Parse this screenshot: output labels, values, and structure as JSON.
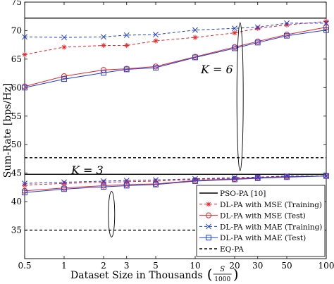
{
  "chart_data": {
    "type": "line",
    "xscale": "log",
    "xlabel": "Dataset Size in Thousands",
    "xlabel_fraction": {
      "num": "S",
      "den": "1000"
    },
    "ylabel": "Sum-Rate [bps/Hz]",
    "xlim": [
      0.5,
      100
    ],
    "ylim": [
      30,
      75
    ],
    "xticks": [
      0.5,
      1,
      2,
      3,
      5,
      10,
      20,
      30,
      50,
      100
    ],
    "xtick_labels": [
      "0.5",
      "1",
      "2",
      "3",
      "5",
      "10",
      "20",
      "30",
      "50",
      "100"
    ],
    "yticks": [
      35,
      40,
      45,
      50,
      55,
      60,
      65,
      70,
      75
    ],
    "ytick_labels": [
      "35",
      "40",
      "45",
      "50",
      "55",
      "60",
      "65",
      "70",
      "75"
    ],
    "grid": false,
    "legend_position": "bottom-right",
    "x": [
      0.5,
      1,
      2,
      3,
      5,
      10,
      20,
      30,
      50,
      100
    ],
    "series": [
      {
        "name": "PSO-PA [10]",
        "style": "solid",
        "color": "#000000",
        "marker": "none",
        "values": [
          72.2,
          72.2,
          72.2,
          72.2,
          72.2,
          72.2,
          72.2,
          72.2,
          72.2,
          72.2
        ]
      },
      {
        "name": "DL-PA with MSE  (Training)",
        "style": "dashed",
        "color": "#e8262a",
        "marker": "asterisk",
        "values": [
          65.8,
          67.1,
          67.4,
          67.4,
          68.2,
          68.8,
          69.6,
          70.4,
          71.0,
          71.6
        ]
      },
      {
        "name": "DL-PA with MSE  (Test)",
        "style": "solid",
        "color": "#e8262a",
        "marker": "circle",
        "values": [
          60.2,
          62.0,
          63.1,
          63.3,
          63.7,
          65.4,
          67.1,
          68.1,
          69.3,
          70.6
        ]
      },
      {
        "name": "DL-PA with MAE  (Training)",
        "style": "dashed",
        "color": "#1f3fd6",
        "marker": "x",
        "values": [
          68.9,
          68.8,
          68.9,
          69.2,
          69.3,
          70.1,
          70.4,
          70.6,
          71.3,
          71.3
        ]
      },
      {
        "name": "DL-PA with MAE  (Test)",
        "style": "solid",
        "color": "#1f3fd6",
        "marker": "square",
        "values": [
          60.0,
          61.5,
          62.6,
          63.2,
          63.5,
          65.3,
          66.9,
          67.9,
          69.1,
          70.1
        ]
      },
      {
        "name": "EQ-PA",
        "style": "dashed",
        "color": "#000000",
        "marker": "none",
        "values": [
          47.7,
          47.7,
          47.7,
          47.7,
          47.7,
          47.7,
          47.7,
          47.7,
          47.7,
          47.7
        ]
      },
      {
        "name": "",
        "style": "solid",
        "color": "#000000",
        "marker": "none",
        "values": [
          44.8,
          44.8,
          44.8,
          44.8,
          44.8,
          44.8,
          44.8,
          44.8,
          44.8,
          44.8
        ]
      },
      {
        "name": "",
        "style": "dashed",
        "color": "#e8262a",
        "marker": "asterisk",
        "values": [
          42.9,
          43.2,
          43.4,
          43.5,
          43.6,
          43.9,
          44.1,
          44.2,
          44.4,
          44.5
        ]
      },
      {
        "name": "",
        "style": "solid",
        "color": "#e8262a",
        "marker": "circle",
        "values": [
          41.9,
          42.4,
          42.8,
          43.0,
          43.1,
          43.7,
          44.0,
          44.2,
          44.4,
          44.5
        ]
      },
      {
        "name": "",
        "style": "dashed",
        "color": "#1f3fd6",
        "marker": "x",
        "values": [
          43.2,
          43.4,
          43.6,
          43.7,
          43.8,
          44.0,
          44.2,
          44.3,
          44.5,
          44.5
        ]
      },
      {
        "name": "",
        "style": "solid",
        "color": "#1f3fd6",
        "marker": "square",
        "values": [
          41.6,
          42.2,
          42.6,
          42.8,
          43.0,
          43.6,
          43.9,
          44.1,
          44.3,
          44.5
        ]
      },
      {
        "name": "",
        "style": "dashed",
        "color": "#000000",
        "marker": "none",
        "values": [
          35.0,
          35.0,
          35.0,
          35.0,
          35.0,
          35.0,
          35.0,
          35.0,
          35.0,
          35.0
        ]
      }
    ],
    "annotations": [
      {
        "label": "K = 6",
        "ellipse_center": [
          22,
          58.4
        ],
        "ellipse_y_half": 13
      },
      {
        "label": "K = 3",
        "ellipse_center": [
          2.3,
          37.8
        ],
        "ellipse_y_half": 4
      }
    ]
  }
}
